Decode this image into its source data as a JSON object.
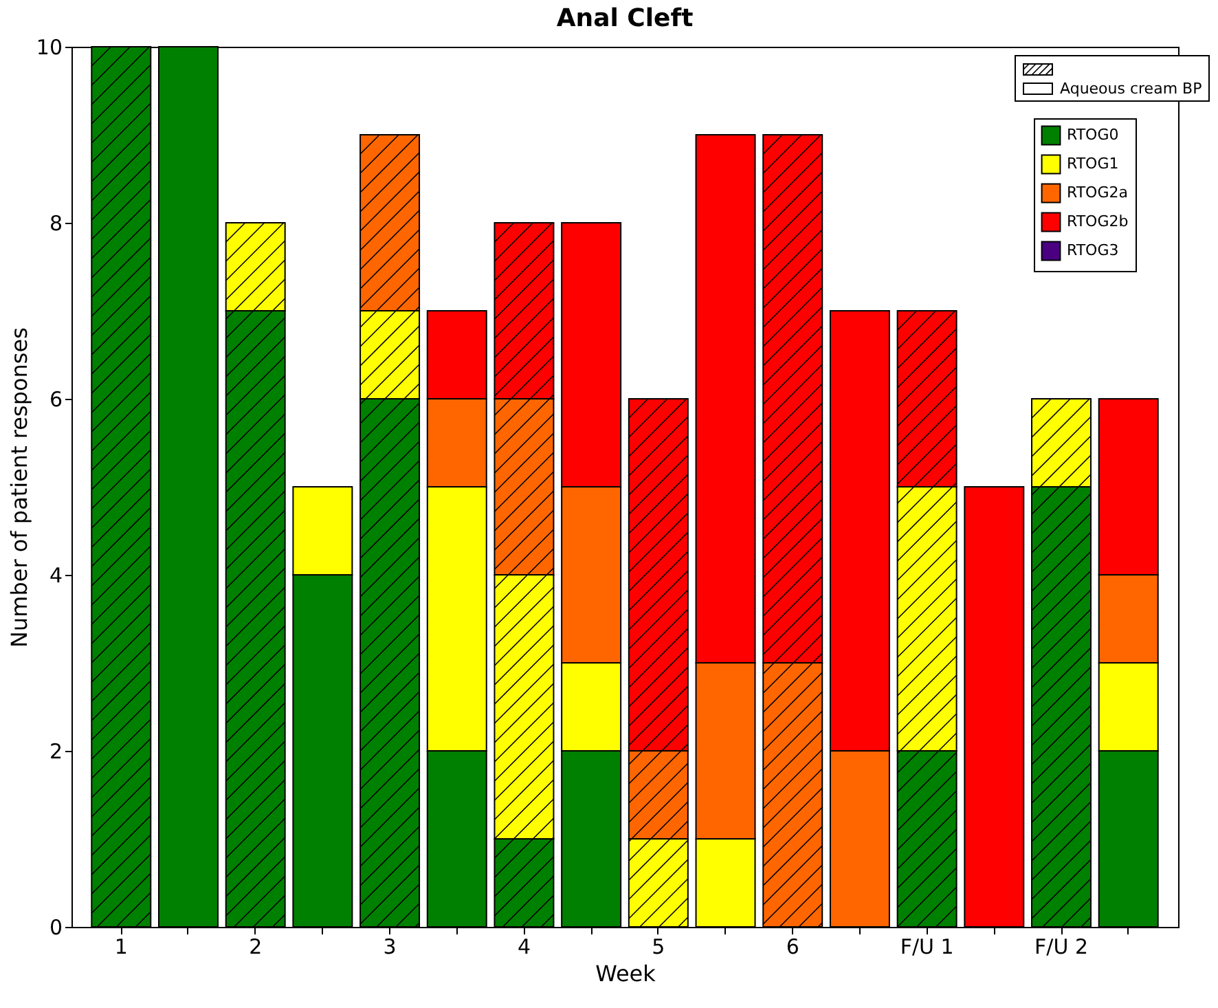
{
  "chart_data": {
    "type": "bar",
    "title": "Anal Cleft",
    "xlabel": "Week",
    "ylabel": "Number of patient responses",
    "categories": [
      "1",
      null,
      "2",
      null,
      "3",
      null,
      "4",
      null,
      "5",
      null,
      "6",
      null,
      "F/U 1",
      null,
      "F/U 2",
      null
    ],
    "stacked": true,
    "ylim": [
      0,
      10
    ],
    "yticks": [
      0,
      2,
      4,
      6,
      8,
      10
    ],
    "legend": "top right",
    "annotations": [
      "Aqueous cream BP"
    ],
    "series": [
      {
        "name": "RTOG0",
        "color": "#008000",
        "values": [
          10,
          10,
          7,
          4,
          6,
          2,
          1,
          2,
          0,
          0,
          0,
          0,
          2,
          0,
          5,
          2
        ]
      },
      {
        "name": "RTOG1",
        "color": "#ffff00",
        "values": [
          0,
          0,
          1,
          1,
          1,
          3,
          3,
          1,
          1,
          1,
          0,
          0,
          3,
          0,
          1,
          1
        ]
      },
      {
        "name": "RTOG2a",
        "color": "#ff6600",
        "values": [
          0,
          0,
          0,
          0,
          2,
          1,
          2,
          2,
          1,
          2,
          3,
          2,
          0,
          0,
          0,
          1
        ]
      },
      {
        "name": "RTOG2b",
        "color": "#ff0000",
        "values": [
          0,
          0,
          0,
          0,
          0,
          1,
          2,
          3,
          4,
          6,
          6,
          5,
          2,
          5,
          0,
          2
        ]
      },
      {
        "name": "RTOG3",
        "color": "#4b0082",
        "values": [
          0,
          0,
          0,
          0,
          0,
          0,
          0,
          0,
          0,
          0,
          0,
          0,
          0,
          0,
          0,
          0
        ]
      }
    ]
  }
}
